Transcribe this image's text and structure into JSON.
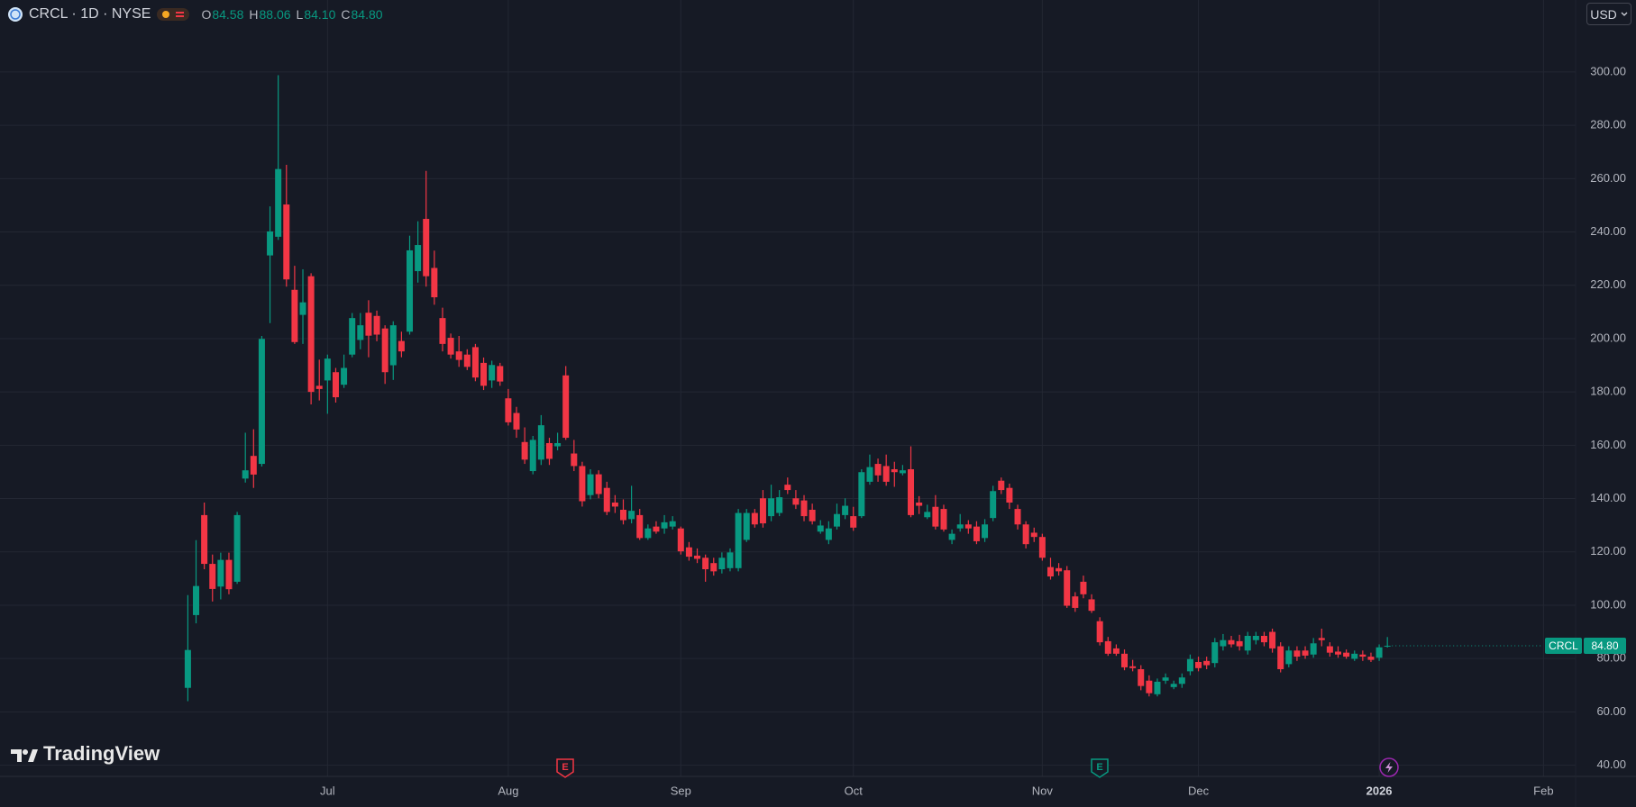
{
  "chart_data": {
    "type": "candlestick",
    "symbol_line": "CRCL · 1D · NYSE",
    "ohlc_legend": {
      "keys": [
        "O",
        "H",
        "L",
        "C"
      ],
      "values": [
        "84.58",
        "88.06",
        "84.10",
        "84.80"
      ]
    },
    "currency": "USD",
    "watermark": "TradingView",
    "event_markers": [
      "E",
      "E"
    ],
    "price_tag": {
      "symbol": "CRCL",
      "value": "84.80"
    },
    "up_color": "#089981",
    "down_color": "#f23645",
    "grid": true,
    "grid_color": "#232733",
    "categories": [
      null,
      null,
      null,
      null,
      null,
      null,
      null,
      null,
      null,
      null,
      null,
      null,
      null,
      null,
      null,
      null,
      null,
      "Jul",
      null,
      null,
      null,
      null,
      null,
      null,
      null,
      null,
      null,
      null,
      null,
      null,
      null,
      null,
      null,
      null,
      null,
      null,
      null,
      null,
      null,
      "Aug",
      null,
      null,
      null,
      null,
      null,
      null,
      null,
      null,
      null,
      null,
      null,
      null,
      null,
      null,
      null,
      null,
      null,
      null,
      null,
      null,
      "Sep",
      null,
      null,
      null,
      null,
      null,
      null,
      null,
      null,
      null,
      null,
      null,
      null,
      null,
      null,
      null,
      null,
      null,
      null,
      null,
      null,
      "Oct",
      null,
      null,
      null,
      null,
      null,
      null,
      null,
      null,
      null,
      null,
      null,
      null,
      null,
      null,
      null,
      null,
      null,
      null,
      null,
      null,
      null,
      null,
      "Nov",
      null,
      null,
      null,
      null,
      null,
      null,
      null,
      null,
      null,
      null,
      null,
      null,
      null,
      null,
      null,
      null,
      null,
      null,
      "Dec",
      null,
      null,
      null,
      null,
      null,
      null,
      null,
      null,
      null,
      null,
      null,
      null,
      null,
      null,
      null,
      null,
      null,
      null,
      null,
      null,
      null,
      "2026",
      null,
      null,
      null,
      null,
      null,
      null,
      null,
      null,
      null,
      null,
      null,
      null,
      null,
      null,
      null,
      null,
      null,
      null,
      null,
      "Feb"
    ],
    "open": [
      69,
      96.3,
      133.8,
      115.5,
      107,
      117,
      108.8,
      147.5,
      156,
      153,
      231.2,
      238.2,
      250.3,
      218.3,
      208.9,
      223.4,
      182.3,
      184.3,
      187.4,
      182.7,
      194,
      199.5,
      209.7,
      208.5,
      203.8,
      190,
      199.1,
      202.6,
      225.3,
      244.9,
      226.5,
      207.7,
      200.3,
      195.2,
      194,
      196.8,
      190.9,
      184.3,
      189.7,
      177.6,
      172.1,
      161.2,
      150.3,
      154.6,
      160.8,
      159.6,
      186.2,
      156.9,
      152.2,
      141.3,
      149.1,
      144,
      138.5,
      135.8,
      132.3,
      133.8,
      125.2,
      129.5,
      128.8,
      129.5,
      128.8,
      121.7,
      118.6,
      117.8,
      115.8,
      113.5,
      113.9,
      113.9,
      124.5,
      134.6,
      140.1,
      133.4,
      134.6,
      145.2,
      140.1,
      139.3,
      135.8,
      127.6,
      124.5,
      129.5,
      133.8,
      133.4,
      133.4,
      146.3,
      153,
      152.2,
      151,
      149.5,
      151,
      138.5,
      133,
      136.9,
      136.1,
      124.5,
      128.8,
      130.3,
      129.5,
      125.2,
      132.7,
      146.7,
      144,
      136.1,
      130.3,
      127.2,
      125.6,
      114.3,
      113.9,
      113.1,
      103.3,
      108.8,
      102.2,
      94,
      86.5,
      83.8,
      81.8,
      77.1,
      76,
      71.7,
      66.6,
      71.7,
      69.3,
      70.5,
      75.2,
      78.7,
      79.1,
      78.3,
      84.6,
      86.9,
      86.5,
      83,
      86.9,
      88.5,
      90,
      84.6,
      77.9,
      83,
      83,
      81.5,
      87.7,
      84.6,
      82.6,
      82.2,
      79.9,
      81.5,
      80.7,
      80.3,
      84.58,
      null,
      null,
      null,
      null,
      null,
      null,
      null,
      null,
      null,
      null,
      null,
      null,
      null,
      null,
      null,
      null,
      null,
      null,
      null
    ],
    "high": [
      103.8,
      124.4,
      138.5,
      119,
      119.7,
      119.7,
      135,
      164.7,
      166,
      201,
      249.6,
      298.8,
      265.2,
      227.3,
      226,
      224.5,
      192.1,
      194,
      189,
      194,
      209.6,
      209.6,
      214.4,
      210.5,
      205,
      206.5,
      202.6,
      238.6,
      244,
      262.9,
      233,
      211.6,
      201.9,
      201,
      196,
      198,
      192.9,
      191.7,
      190.9,
      181.1,
      174.4,
      166.7,
      163.5,
      171.3,
      162.8,
      164.7,
      189.7,
      162,
      153.8,
      151,
      150.6,
      146.3,
      141.3,
      139.7,
      144.8,
      136.1,
      130.3,
      131.5,
      133.8,
      133.4,
      129.5,
      123.7,
      121.3,
      119,
      117.8,
      119.8,
      121.3,
      136.1,
      136.1,
      136.1,
      143.2,
      145.2,
      143.2,
      147.9,
      143.2,
      141.3,
      138.1,
      131.9,
      131.5,
      138.1,
      140.1,
      136.9,
      151,
      156.5,
      155,
      156.5,
      153.8,
      152.6,
      159.6,
      140.9,
      137.7,
      141.3,
      137.7,
      128.4,
      134.2,
      131.9,
      131.5,
      132.3,
      144.8,
      147.9,
      145.6,
      137.7,
      131.5,
      129.1,
      126.8,
      117.8,
      115.8,
      114.7,
      104.9,
      111.1,
      104.1,
      95.5,
      88.1,
      85.3,
      83.4,
      79.5,
      77.5,
      73.7,
      72.5,
      74.4,
      71.7,
      74.4,
      81.5,
      80.7,
      80.7,
      87.7,
      89.2,
      88.5,
      88.9,
      90,
      90,
      90,
      91.2,
      86.1,
      84.6,
      84.6,
      84.6,
      87.7,
      91.2,
      86.1,
      84.6,
      83.4,
      83,
      83,
      82.2,
      85.3,
      88.06,
      null,
      null,
      null,
      null,
      null,
      null,
      null,
      null,
      null,
      null,
      null,
      null,
      null,
      null,
      null,
      null,
      null,
      null,
      null
    ],
    "low": [
      64,
      93.2,
      113.5,
      101.4,
      102.2,
      104.1,
      108,
      146,
      144,
      152,
      205.8,
      237,
      219.5,
      198,
      198,
      175.3,
      176.8,
      171.8,
      176,
      181.5,
      193,
      196,
      193,
      199,
      183,
      184.5,
      193,
      201.5,
      221,
      219.5,
      212.7,
      195.2,
      192.5,
      189.4,
      188.2,
      184,
      180.7,
      181.5,
      182.3,
      167.4,
      162.8,
      153,
      149.1,
      152.6,
      152.6,
      158.1,
      162,
      150.3,
      137,
      139.7,
      140.1,
      133.8,
      134.6,
      130.3,
      130.7,
      124.5,
      124.5,
      126.8,
      126.8,
      128.4,
      119,
      116.7,
      115.8,
      108.8,
      111.1,
      111.9,
      112.7,
      112.7,
      123.7,
      129.1,
      129.1,
      131.5,
      133.4,
      141.7,
      136.1,
      131.5,
      130.3,
      126.8,
      122.9,
      128.4,
      132.3,
      127.9,
      132.7,
      145.2,
      146.3,
      144.8,
      144.4,
      148.7,
      133,
      134.2,
      132.3,
      128.4,
      127.6,
      122.9,
      127.6,
      126.8,
      122.9,
      123.7,
      131.5,
      141.7,
      136.1,
      128.4,
      121.3,
      123.7,
      116.7,
      109.6,
      111.1,
      99,
      97.5,
      102.6,
      97.1,
      84.9,
      81,
      81,
      75.6,
      75.2,
      68.1,
      65.8,
      65.8,
      70.5,
      68.5,
      69,
      73.7,
      75.2,
      76,
      76.7,
      83,
      84.2,
      83,
      81.5,
      85.3,
      84.6,
      82.2,
      74.8,
      76.7,
      79.1,
      79.9,
      80.3,
      84.6,
      80.7,
      80.3,
      79.9,
      79.1,
      79.1,
      78.7,
      79.1,
      84.1,
      null,
      null,
      null,
      null,
      null,
      null,
      null,
      null,
      null,
      null,
      null,
      null,
      null,
      null,
      null,
      null,
      null,
      null,
      null
    ],
    "close": [
      83.2,
      107.2,
      115.5,
      106.1,
      117,
      106,
      133.8,
      150.6,
      149,
      199.9,
      240.2,
      263.6,
      222.2,
      198.7,
      213.6,
      180,
      181.1,
      192.5,
      178,
      189,
      207.7,
      205,
      201.1,
      201.5,
      187.4,
      205,
      195.2,
      233.1,
      235.1,
      223.4,
      215.5,
      198,
      194,
      192,
      189.4,
      185.4,
      182.3,
      190.1,
      183.9,
      168.6,
      165.9,
      154.6,
      162,
      167.5,
      154.9,
      160.8,
      162.8,
      152.2,
      139,
      149.1,
      141.7,
      135,
      137,
      131.9,
      135.4,
      125.2,
      128.8,
      127.6,
      131.1,
      131.5,
      120.2,
      118.2,
      117.4,
      113.5,
      112.7,
      117.8,
      119.8,
      134.6,
      134.6,
      130.3,
      130.7,
      140.1,
      140.5,
      143.2,
      137.7,
      133.4,
      131.5,
      129.9,
      128.8,
      134.2,
      137.3,
      129.1,
      149.9,
      151.8,
      148.7,
      146.3,
      149.9,
      150.6,
      133.8,
      137.3,
      135,
      129.5,
      128.4,
      126.8,
      130.3,
      128.8,
      124,
      130.3,
      142.8,
      143.2,
      138.5,
      130.3,
      122.9,
      125.6,
      117.8,
      110.8,
      112.7,
      99.8,
      99,
      104.1,
      97.9,
      86.1,
      81.8,
      81.8,
      76.7,
      76.4,
      69.7,
      67,
      71.3,
      72.9,
      70.5,
      72.9,
      79.8,
      76.4,
      77.5,
      86.1,
      86.9,
      85.3,
      84.6,
      88.5,
      88.5,
      86.1,
      83.8,
      76,
      83,
      80.7,
      81.1,
      85.7,
      86.9,
      82.2,
      81.5,
      80.7,
      81.8,
      80.7,
      79.5,
      84.2,
      84.8,
      null,
      null,
      null,
      null,
      null,
      null,
      null,
      null,
      null,
      null,
      null,
      null,
      null,
      null,
      null,
      null,
      null,
      null,
      null
    ],
    "ylim": [
      35.8,
      327
    ],
    "yticks": [
      {
        "value": 40,
        "label": "40.00"
      },
      {
        "value": 60,
        "label": "60.00"
      },
      {
        "value": 80,
        "label": "80.00"
      },
      {
        "value": 100,
        "label": "100.00"
      },
      {
        "value": 120,
        "label": "120.00"
      },
      {
        "value": 140,
        "label": "140.00"
      },
      {
        "value": 160,
        "label": "160.00"
      },
      {
        "value": 180,
        "label": "180.00"
      },
      {
        "value": 200,
        "label": "200.00"
      },
      {
        "value": 220,
        "label": "220.00"
      },
      {
        "value": 240,
        "label": "240.00"
      },
      {
        "value": 260,
        "label": "260.00"
      },
      {
        "value": 280,
        "label": "280.00"
      },
      {
        "value": 300,
        "label": "300.00"
      }
    ]
  }
}
